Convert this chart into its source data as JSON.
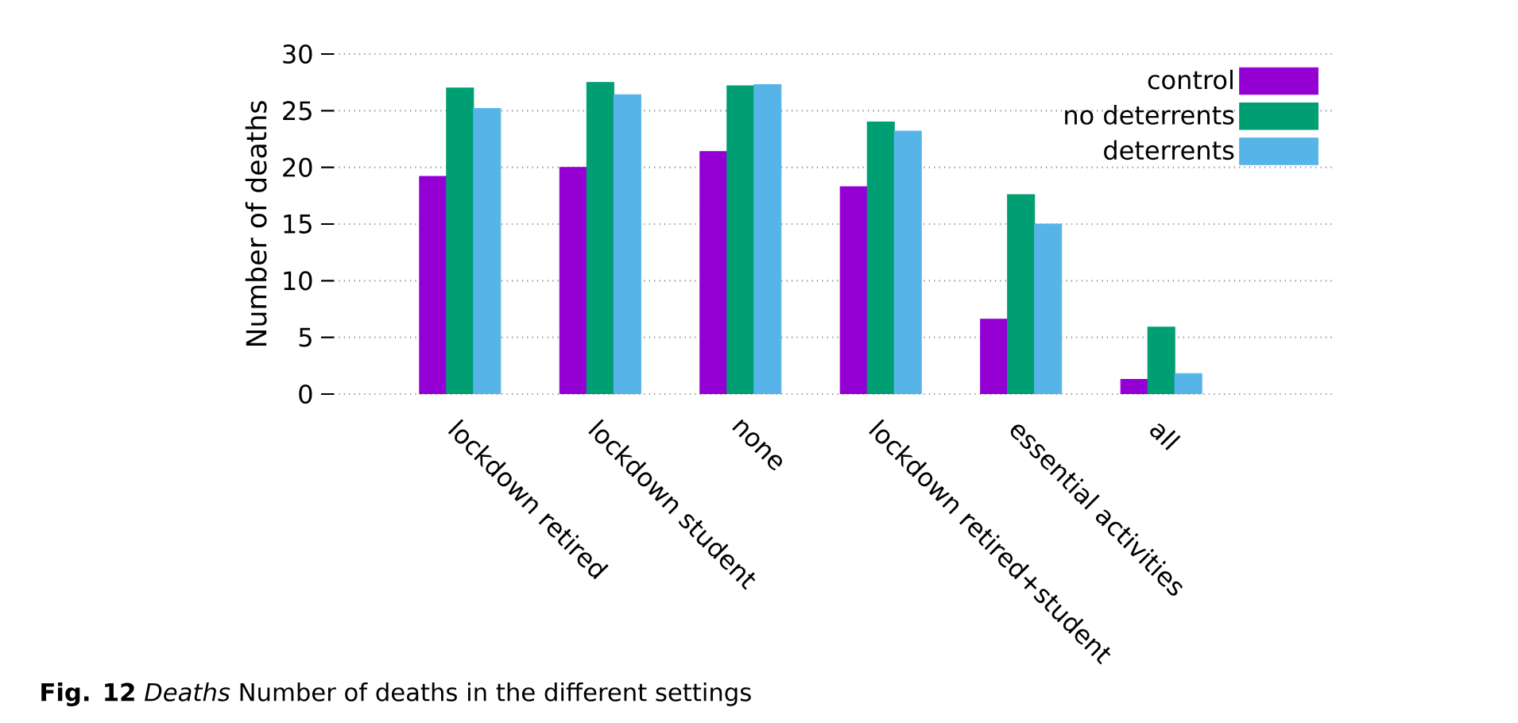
{
  "chart_data": {
    "type": "bar",
    "ylabel": "Number of deaths",
    "categories": [
      "lockdown retired",
      "lockdown student",
      "none",
      "lockdown retired+student",
      "essential activities",
      "all"
    ],
    "series": [
      {
        "name": "control",
        "color": "#9400d3",
        "values": [
          19.2,
          20.0,
          21.4,
          18.3,
          6.6,
          1.3
        ]
      },
      {
        "name": "no deterrents",
        "color": "#009e73",
        "values": [
          27.0,
          27.5,
          27.2,
          24.0,
          17.6,
          5.9
        ]
      },
      {
        "name": "deterrents",
        "color": "#56b4e9",
        "values": [
          25.2,
          26.4,
          27.3,
          23.2,
          15.0,
          1.8
        ]
      }
    ],
    "ylim": [
      0,
      30
    ],
    "yticks": [
      0,
      5,
      10,
      15,
      20,
      25,
      30
    ],
    "grid": "y",
    "legend": "top right",
    "annotations": [
      "**Fig. 12** *Deaths* Number of deaths in the different settings"
    ]
  }
}
